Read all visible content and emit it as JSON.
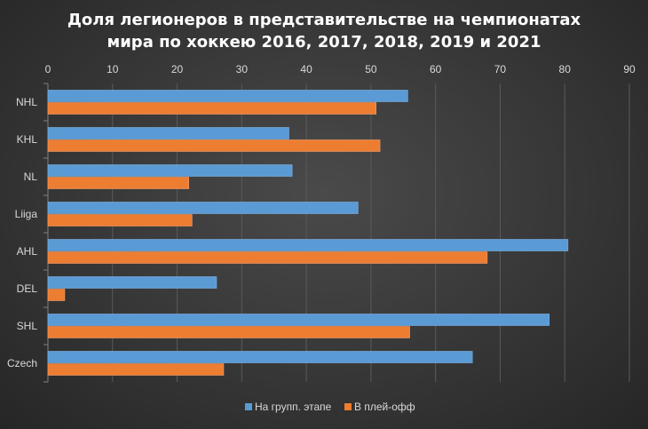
{
  "chart_data": {
    "type": "bar",
    "orientation": "horizontal",
    "title_line1": "Доля легионеров в представительстве  на чемпионатах",
    "title_line2": "мира по хоккею 2016, 2017, 2018, 2019 и 2021",
    "categories": [
      "NHL",
      "KHL",
      "NL",
      "Liiga",
      "AHL",
      "DEL",
      "SHL",
      "Czech"
    ],
    "series": [
      {
        "name": "На групп. этапе",
        "color": "#5b9bd5",
        "values": [
          55.7,
          37.3,
          37.8,
          48.0,
          80.5,
          26.1,
          77.6,
          65.7
        ]
      },
      {
        "name": "В плей-офф",
        "color": "#ed7d31",
        "values": [
          50.8,
          51.4,
          21.8,
          22.3,
          68.0,
          2.6,
          56.0,
          27.2
        ]
      }
    ],
    "xlim": [
      0,
      90
    ],
    "xticks": [
      0,
      10,
      20,
      30,
      40,
      50,
      60,
      70,
      80,
      90
    ],
    "axis_position": "top",
    "grid": true,
    "legend_position": "bottom"
  }
}
